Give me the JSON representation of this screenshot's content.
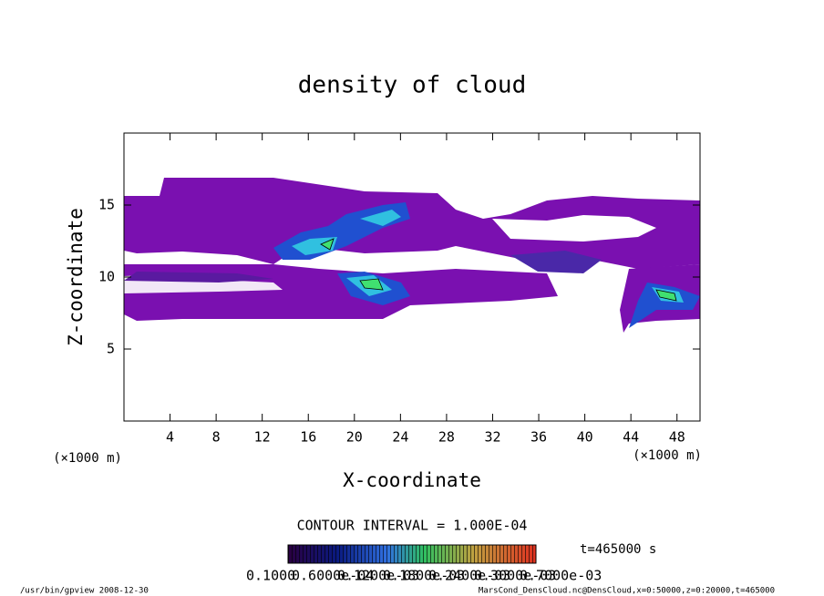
{
  "chart_data": {
    "type": "contour",
    "title": "density of cloud",
    "x_label": "X-coordinate",
    "y_label": "Z-coordinate",
    "x_unit": "(×1000 m)",
    "y_unit": "(×1000 m)",
    "xlim": [
      0,
      50
    ],
    "xticks": [
      4,
      8,
      12,
      16,
      20,
      24,
      28,
      32,
      36,
      40,
      44,
      48
    ],
    "ylim": [
      0,
      20
    ],
    "yticks": [
      5,
      10,
      15
    ],
    "contour_interval": "CONTOUR INTERVAL = 1.000E-04",
    "time_label": "t=465000 s",
    "colorbar_labels": [
      "0.1000",
      "0.6000e-04",
      "0.1200e-03",
      "0.1800e-03",
      "0.2400e-03",
      "0.3000e-03",
      "0.7000e-03"
    ],
    "footer_left": "/usr/bin/gpview   2008-12-30",
    "footer_right": "MarsCond_DensCloud.nc@DensCloud,x=0:50000,z=0:20000,t=465000"
  }
}
